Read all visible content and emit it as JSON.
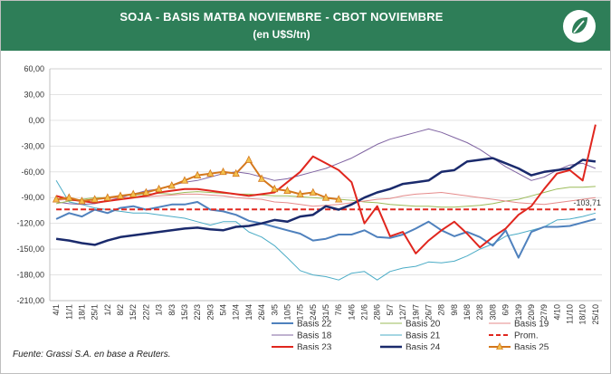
{
  "header": {
    "title": "SOJA - BASIS MATBA NOVIEMBRE - CBOT NOVIEMBRE",
    "subtitle": "(en U$S/tn)",
    "logo": "leaf-logo-icon"
  },
  "source_note": "Fuente: Grassi S.A. en base a Reuters.",
  "chart_data": {
    "type": "line",
    "ylim": [
      -210,
      60
    ],
    "yticks": [
      60,
      30,
      0,
      -30,
      -60,
      -90,
      -120,
      -150,
      -180,
      -210
    ],
    "ytick_labels": [
      "60,00",
      "30,00",
      "0,00",
      "-30,00",
      "-60,00",
      "-90,00",
      "-120,00",
      "-150,00",
      "-180,00",
      "-210,00"
    ],
    "x_labels": [
      "4/1",
      "11/1",
      "18/1",
      "25/1",
      "1/2",
      "8/2",
      "15/2",
      "22/2",
      "1/3",
      "8/3",
      "15/3",
      "22/3",
      "29/3",
      "5/4",
      "12/4",
      "19/4",
      "26/4",
      "3/5",
      "10/5",
      "17/5",
      "24/5",
      "31/5",
      "7/6",
      "14/6",
      "21/6",
      "28/6",
      "5/7",
      "12/7",
      "19/7",
      "26/7",
      "2/8",
      "9/8",
      "16/8",
      "23/8",
      "30/8",
      "6/9",
      "13/9",
      "20/9",
      "27/9",
      "4/10",
      "11/10",
      "18/10",
      "25/10"
    ],
    "series": [
      {
        "name": "Basis 22",
        "color": "#4f81bd",
        "style": "solid",
        "width": 2,
        "values": [
          -115,
          -108,
          -112,
          -104,
          -108,
          -102,
          -100,
          -104,
          -101,
          -98,
          -98,
          -95,
          -104,
          -106,
          -110,
          -117,
          -120,
          -124,
          -128,
          -132,
          -140,
          -138,
          -133,
          -133,
          -128,
          -136,
          -137,
          -133,
          -126,
          -118,
          -128,
          -135,
          -130,
          -136,
          -146,
          -128,
          -160,
          -130,
          -124,
          -124,
          -123,
          -119,
          -115
        ]
      },
      {
        "name": "Basis 20",
        "color": "#9bbb59",
        "style": "solid",
        "width": 1,
        "values": [
          -97,
          -94,
          -92,
          -90,
          -90,
          -88,
          -87,
          -86,
          -85,
          -86,
          -84,
          -83,
          -84,
          -85,
          -86,
          -86,
          -87,
          -88,
          -88,
          -89,
          -90,
          -91,
          -92,
          -93,
          -95,
          -96,
          -98,
          -99,
          -100,
          -100,
          -101,
          -101,
          -100,
          -99,
          -97,
          -94,
          -92,
          -88,
          -84,
          -80,
          -78,
          -78,
          -77
        ]
      },
      {
        "name": "Basis 19",
        "color": "#e58b8b",
        "style": "solid",
        "width": 1,
        "values": [
          -93,
          -92,
          -93,
          -92,
          -91,
          -90,
          -90,
          -89,
          -88,
          -87,
          -86,
          -86,
          -87,
          -88,
          -90,
          -91,
          -92,
          -95,
          -96,
          -98,
          -100,
          -99,
          -98,
          -96,
          -94,
          -92,
          -91,
          -88,
          -86,
          -85,
          -84,
          -86,
          -88,
          -90,
          -92,
          -94,
          -96,
          -97,
          -98,
          -96,
          -94,
          -92,
          -90
        ]
      },
      {
        "name": "Basis 18",
        "color": "#8064a2",
        "style": "solid",
        "width": 1,
        "values": [
          -95,
          -97,
          -98,
          -97,
          -94,
          -90,
          -86,
          -82,
          -80,
          -76,
          -72,
          -70,
          -66,
          -62,
          -60,
          -62,
          -66,
          -70,
          -68,
          -64,
          -60,
          -56,
          -50,
          -44,
          -36,
          -28,
          -22,
          -18,
          -14,
          -10,
          -14,
          -20,
          -26,
          -34,
          -44,
          -54,
          -62,
          -70,
          -66,
          -58,
          -52,
          -50,
          -56
        ]
      },
      {
        "name": "Basis 21",
        "color": "#4bacc6",
        "style": "solid",
        "width": 1,
        "values": [
          -70,
          -95,
          -98,
          -102,
          -104,
          -106,
          -108,
          -108,
          -110,
          -112,
          -114,
          -118,
          -122,
          -118,
          -118,
          -130,
          -136,
          -146,
          -160,
          -175,
          -180,
          -182,
          -186,
          -178,
          -176,
          -186,
          -176,
          -172,
          -170,
          -165,
          -166,
          -164,
          -158,
          -150,
          -144,
          -135,
          -132,
          -128,
          -124,
          -116,
          -115,
          -112,
          -108
        ]
      },
      {
        "name": "Basis 23",
        "color": "#e0261e",
        "style": "solid",
        "width": 2,
        "values": [
          -88,
          -92,
          -94,
          -96,
          -94,
          -92,
          -90,
          -88,
          -84,
          -82,
          -80,
          -80,
          -82,
          -84,
          -86,
          -88,
          -86,
          -84,
          -72,
          -60,
          -42,
          -50,
          -58,
          -72,
          -120,
          -100,
          -135,
          -130,
          -155,
          -140,
          -128,
          -118,
          -132,
          -148,
          -136,
          -126,
          -110,
          -100,
          -80,
          -62,
          -58,
          -70,
          -5
        ]
      },
      {
        "name": "Basis 24",
        "color": "#1a2a6c",
        "style": "solid",
        "width": 2.5,
        "values": [
          -138,
          -140,
          -143,
          -145,
          -140,
          -136,
          -134,
          -132,
          -130,
          -128,
          -126,
          -125,
          -127,
          -128,
          -124,
          -123,
          -120,
          -116,
          -118,
          -112,
          -110,
          -100,
          -104,
          -98,
          -90,
          -84,
          -80,
          -74,
          -72,
          -70,
          -60,
          -58,
          -48,
          -46,
          -44,
          -50,
          -56,
          -64,
          -60,
          -58,
          -56,
          -46,
          -48
        ]
      },
      {
        "name": "Prom.",
        "color": "#e0261e",
        "style": "dashed",
        "width": 2,
        "values": [
          -103.71,
          -103.71,
          -103.71,
          -103.71,
          -103.71,
          -103.71,
          -103.71,
          -103.71,
          -103.71,
          -103.71,
          -103.71,
          -103.71,
          -103.71,
          -103.71,
          -103.71,
          -103.71,
          -103.71,
          -103.71,
          -103.71,
          -103.71,
          -103.71,
          -103.71,
          -103.71,
          -103.71,
          -103.71,
          -103.71,
          -103.71,
          -103.71,
          -103.71,
          -103.71,
          -103.71,
          -103.71,
          -103.71,
          -103.71,
          -103.71,
          -103.71,
          -103.71,
          -103.71,
          -103.71,
          -103.71,
          -103.71,
          -103.71,
          -103.71
        ]
      },
      {
        "name": "Basis 25",
        "color": "#d4771c",
        "marker": "triangle",
        "marker_color": "#f2c14e",
        "style": "solid",
        "width": 2,
        "values": [
          -92,
          -90,
          -94,
          -92,
          -90,
          -88,
          -86,
          -84,
          -80,
          -76,
          -70,
          -64,
          -62,
          -60,
          -62,
          -46,
          -68,
          -80,
          -82,
          -86,
          -84,
          -90,
          -92,
          null,
          null,
          null,
          null,
          null,
          null,
          null,
          null,
          null,
          null,
          null,
          null,
          null,
          null,
          null,
          null,
          null,
          null,
          null,
          null
        ]
      }
    ],
    "annotations": [
      {
        "text": "-103,71",
        "x": "11/10",
        "y": -103.71
      }
    ],
    "legend": {
      "placement": "bottom",
      "columns": 3,
      "order": [
        "Basis 22",
        "Basis 20",
        "Basis 19",
        "Basis 18",
        "Basis 21",
        "Prom.",
        "Basis 23",
        "Basis 24",
        "Basis 25"
      ]
    },
    "grid": true
  }
}
